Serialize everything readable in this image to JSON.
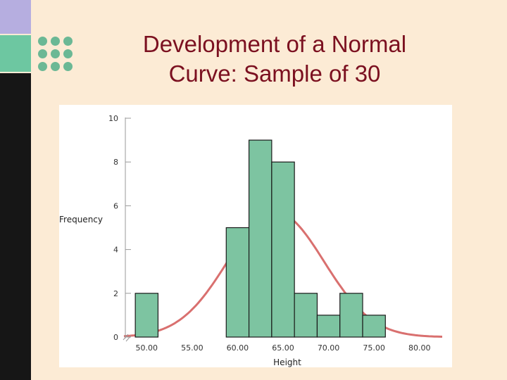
{
  "slide": {
    "title_line1": "Development of a Normal",
    "title_line2": "Curve: Sample of 30"
  },
  "colors": {
    "title": "#7b1020",
    "background": "#fcebd5",
    "bar_fill": "#7dc4a1",
    "bar_stroke": "#1a1a1a",
    "curve": "#d9706f",
    "sidebar_purple": "#b6aee0",
    "sidebar_green": "#6dc7a1",
    "sidebar_black": "#161616",
    "dots": "#6bb895"
  },
  "chart_data": {
    "type": "bar",
    "xlabel": "Height",
    "ylabel": "Frequency",
    "ylim": [
      0,
      10
    ],
    "yticks": [
      0,
      2,
      4,
      6,
      8,
      10
    ],
    "xlim": [
      47.5,
      82.5
    ],
    "xticks": [
      "50.00",
      "55.00",
      "60.00",
      "65.00",
      "70.00",
      "75.00",
      "80.00"
    ],
    "bin_width": 2.5,
    "bins": [
      {
        "center": 50.0,
        "value": 2
      },
      {
        "center": 52.5,
        "value": 0
      },
      {
        "center": 55.0,
        "value": 0
      },
      {
        "center": 57.5,
        "value": 0
      },
      {
        "center": 60.0,
        "value": 5
      },
      {
        "center": 62.5,
        "value": 9
      },
      {
        "center": 65.0,
        "value": 8
      },
      {
        "center": 67.5,
        "value": 2
      },
      {
        "center": 70.0,
        "value": 1
      },
      {
        "center": 72.5,
        "value": 2
      },
      {
        "center": 75.0,
        "value": 1
      }
    ],
    "normal_curve": {
      "mean": 64.2,
      "sd": 5.3,
      "peak": 5.7
    },
    "grid": false
  }
}
